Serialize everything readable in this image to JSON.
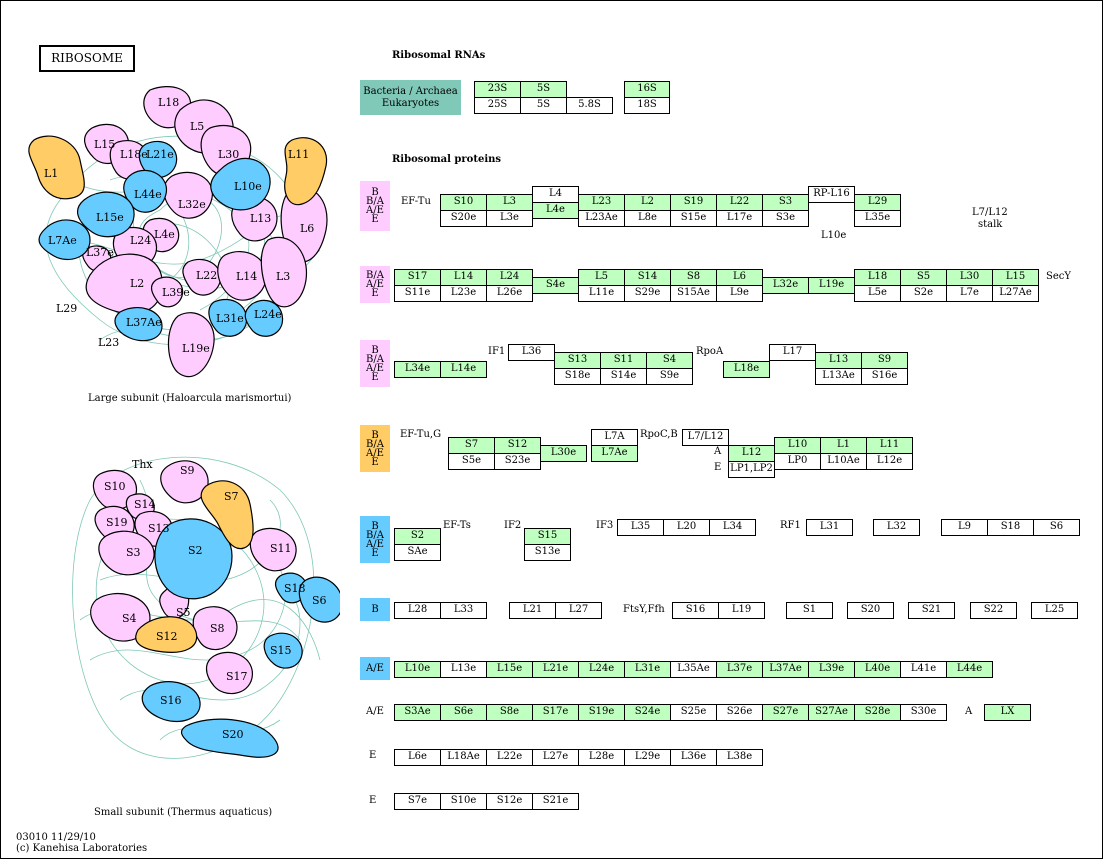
{
  "title": "RIBOSOME",
  "headings": {
    "rrna": "Ribosomal RNAs",
    "proteins": "Ribosomal proteins"
  },
  "captions": {
    "large": "Large subunit (Haloarcula marismortui)",
    "small": "Small subunit (Thermus aquaticus)"
  },
  "footer": {
    "line1": "03010 11/29/10",
    "line2": "(c) Kanehisa Laboratories"
  },
  "colors": {
    "pink": "#ffccff",
    "blue": "#66ccff",
    "orange": "#ffcc66",
    "green": "#bfffbf",
    "teal": "#80c8b8"
  },
  "rrna_row_labels": {
    "line1": "Bacteria / Archaea",
    "line2": "Eukaryotes"
  },
  "rrna": {
    "r1": [
      "23S",
      "5S"
    ],
    "r2": [
      "25S",
      "5S",
      "5.8S"
    ],
    "r3": [
      "16S",
      "18S"
    ]
  },
  "large_proteins": {
    "pink": [
      "L18",
      "L5",
      "L15",
      "L18e",
      "L30",
      "L32e",
      "L13",
      "L6",
      "L4e",
      "L24",
      "L37e",
      "L2",
      "L39e",
      "L22",
      "L14",
      "L3",
      "L19e"
    ],
    "blue": [
      "L21e",
      "L44e",
      "L10e",
      "L15e",
      "L7Ae",
      "L37Ae",
      "L31e",
      "L24e"
    ],
    "orange": [
      "L1",
      "L11"
    ],
    "outside": [
      "L29",
      "L23"
    ]
  },
  "small_proteins": {
    "pink": [
      "S9",
      "S10",
      "S14",
      "S19",
      "S13",
      "S3",
      "S11",
      "S4",
      "S5",
      "S8",
      "S17"
    ],
    "blue": [
      "S2",
      "S18",
      "S6",
      "S15",
      "S16",
      "S20"
    ],
    "orange": [
      "S7",
      "S12"
    ],
    "outside": [
      "Thx"
    ]
  },
  "section_tags": {
    "s1": [
      "B",
      "B/A",
      "A/E",
      "E"
    ],
    "s2": [
      "B/A",
      "A/E",
      "E"
    ],
    "s3": [
      "B",
      "B/A",
      "A/E",
      "E"
    ],
    "s4": [
      "B",
      "B/A",
      "A/E",
      "E"
    ],
    "s5": [
      "B",
      "B/A",
      "A/E",
      "E"
    ],
    "s6": [
      "B"
    ],
    "s7": [
      "A/E"
    ]
  },
  "labels": {
    "ef_tu": "EF-Tu",
    "l10e": "L10e",
    "l7l12_a": "L7/L12",
    "l7l12_b": "stalk",
    "secy": "SecY",
    "if1": "IF1",
    "rpoa": "RpoA",
    "ef_tu_g": "EF-Tu,G",
    "rpoc": "RpoC,B",
    "a1": "A",
    "e1": "E",
    "ef_ts": "EF-Ts",
    "if2": "IF2",
    "if3": "IF3",
    "rf1": "RF1",
    "ftsy": "FtsY,Ffh",
    "ae2": "A/E",
    "a2": "A",
    "e3": "E",
    "e4": "E"
  },
  "rows": {
    "r1": {
      "l4": "L4",
      "rpl16": "RP-L16",
      "top": [
        "S10",
        "L3",
        "L4e",
        "L23",
        "L2",
        "S19",
        "L22",
        "S3",
        "L29"
      ],
      "bottom": [
        "S20e",
        "L3e",
        "L23Ae",
        "L8e",
        "S15e",
        "L17e",
        "S3e",
        "L35e"
      ]
    },
    "r2": {
      "top": [
        "S17",
        "L14",
        "L24",
        "S4e",
        "L5",
        "S14",
        "S8",
        "L6",
        "L32e",
        "L19e",
        "L18",
        "S5",
        "L30",
        "L15"
      ],
      "bottom": [
        "S11e",
        "L23e",
        "L26e",
        "L11e",
        "S29e",
        "S15Ae",
        "L9e",
        "L5e",
        "S2e",
        "L7e",
        "L27Ae"
      ]
    },
    "r3": {
      "l36": "L36",
      "l17": "L17",
      "top": [
        "S13",
        "S11",
        "S4",
        "L13",
        "S9"
      ],
      "bottom": [
        "L34e",
        "L14e",
        "S18e",
        "S14e",
        "S9e",
        "L18e",
        "L13Ae",
        "S16e"
      ]
    },
    "r4": {
      "l7a": "L7A",
      "l7l12": "L7/L12",
      "top": [
        "S7",
        "S12",
        "L30e",
        "L7Ae",
        "L12",
        "L10",
        "L1",
        "L11"
      ],
      "bottom": [
        "S5e",
        "S23e",
        "LP1,LP2",
        "LP0",
        "L10Ae",
        "L12e"
      ]
    },
    "r5": {
      "g": [
        "S2",
        "S15"
      ],
      "w": [
        "SAe",
        "S13e",
        "L35",
        "L20",
        "L34",
        "L31",
        "L32",
        "L9",
        "S18",
        "S6"
      ]
    },
    "r6": [
      "L28",
      "L33",
      "L21",
      "L27",
      "S16",
      "L19",
      "S1",
      "S20",
      "S21",
      "S22",
      "L25"
    ],
    "r7": [
      "L10e",
      "L13e",
      "L15e",
      "L21e",
      "L24e",
      "L31e",
      "L35Ae",
      "L37e",
      "L37Ae",
      "L39e",
      "L40e",
      "L41e",
      "L44e"
    ],
    "r8": [
      "S3Ae",
      "S6e",
      "S8e",
      "S17e",
      "S19e",
      "S24e",
      "S25e",
      "S26e",
      "S27e",
      "S27Ae",
      "S28e",
      "S30e",
      "LX"
    ],
    "r9": [
      "L6e",
      "L18Ae",
      "L22e",
      "L27e",
      "L28e",
      "L29e",
      "L36e",
      "L38e"
    ],
    "r10": [
      "S7e",
      "S10e",
      "S12e",
      "S21e"
    ]
  }
}
